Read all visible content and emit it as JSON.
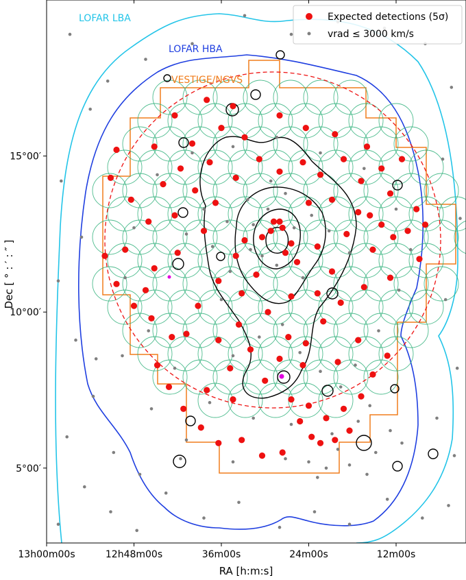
{
  "chart_data": {
    "type": "scatter",
    "xlabel": "RA [h:m:s]",
    "ylabel": "Dec [ ° : ′ : ″ ]",
    "x_units": "degrees of RA (decreasing to the right)",
    "xlim": [
      195.0,
      180.6
    ],
    "ylim": [
      2.6,
      20.0
    ],
    "x_ticks": [
      {
        "value": 195.0,
        "label": "13h00m00s"
      },
      {
        "value": 192.0,
        "label": "12h48m00s"
      },
      {
        "value": 189.0,
        "label": "36m00s"
      },
      {
        "value": 186.0,
        "label": "24m00s"
      },
      {
        "value": 183.0,
        "label": "12m00s"
      }
    ],
    "y_ticks": [
      {
        "value": 5.0,
        "label": "5°00′"
      },
      {
        "value": 10.0,
        "label": "10°00′"
      },
      {
        "value": 15.0,
        "label": "15°00′"
      }
    ],
    "region_labels": [
      {
        "text": "LOFAR LBA",
        "color": "#22c4e8"
      },
      {
        "text": "LOFAR HBA",
        "color": "#1e3ee0"
      },
      {
        "text": "VESTIGE/NGVS",
        "color": "#f07d1c"
      }
    ],
    "legend": {
      "position": "top-right",
      "entries": [
        {
          "label": "Expected detections (5σ)",
          "color": "#ee1111",
          "marker": "large-dot"
        },
        {
          "label": "vrad ≤ 3000 km/s",
          "color": "#7f7f7f",
          "marker": "small-dot"
        }
      ]
    },
    "colors": {
      "lba": "#22c4e8",
      "hba": "#1e3ee0",
      "vestige": "#f07d1c",
      "red_circle": "#ee1111",
      "pointings": "#2fb07a",
      "contours": "#000000",
      "gray_points": "#7f7f7f",
      "red_points": "#ee1111",
      "magenta": "#e000e0"
    },
    "grid": false,
    "series": [
      {
        "name": "Expected detections (5σ)",
        "marker": "red dots",
        "points": [
          [
            187.6,
            12.4
          ],
          [
            187.3,
            12.6
          ],
          [
            187.0,
            12.9
          ],
          [
            187.2,
            12.9
          ],
          [
            186.9,
            12.7
          ],
          [
            186.6,
            12.2
          ],
          [
            186.8,
            11.9
          ],
          [
            188.2,
            12.3
          ],
          [
            188.5,
            11.8
          ],
          [
            187.8,
            11.2
          ],
          [
            186.4,
            11.6
          ],
          [
            185.7,
            12.1
          ],
          [
            185.2,
            11.3
          ],
          [
            184.7,
            12.5
          ],
          [
            184.3,
            13.2
          ],
          [
            183.9,
            13.1
          ],
          [
            183.5,
            12.8
          ],
          [
            183.8,
            12.0
          ],
          [
            183.1,
            12.4
          ],
          [
            182.6,
            12.6
          ],
          [
            182.3,
            13.3
          ],
          [
            182.0,
            12.8
          ],
          [
            182.2,
            11.7
          ],
          [
            183.2,
            11.1
          ],
          [
            184.1,
            10.8
          ],
          [
            184.9,
            10.3
          ],
          [
            185.5,
            9.7
          ],
          [
            186.1,
            9.0
          ],
          [
            186.7,
            9.2
          ],
          [
            187.0,
            8.5
          ],
          [
            188.0,
            8.8
          ],
          [
            188.7,
            8.2
          ],
          [
            187.5,
            7.8
          ],
          [
            186.6,
            7.2
          ],
          [
            186.0,
            7.0
          ],
          [
            185.4,
            6.6
          ],
          [
            184.8,
            6.9
          ],
          [
            184.2,
            7.3
          ],
          [
            183.8,
            8.0
          ],
          [
            183.3,
            8.6
          ],
          [
            185.9,
            6.0
          ],
          [
            185.6,
            5.8
          ],
          [
            185.1,
            5.9
          ],
          [
            184.6,
            6.2
          ],
          [
            186.3,
            6.5
          ],
          [
            186.9,
            5.5
          ],
          [
            187.6,
            5.4
          ],
          [
            188.3,
            5.9
          ],
          [
            189.1,
            5.8
          ],
          [
            189.7,
            6.3
          ],
          [
            190.3,
            6.9
          ],
          [
            189.5,
            7.5
          ],
          [
            188.6,
            7.2
          ],
          [
            190.8,
            7.6
          ],
          [
            191.2,
            8.3
          ],
          [
            190.7,
            9.2
          ],
          [
            191.4,
            9.8
          ],
          [
            192.0,
            10.2
          ],
          [
            192.6,
            10.9
          ],
          [
            191.3,
            11.4
          ],
          [
            190.5,
            11.9
          ],
          [
            189.6,
            12.6
          ],
          [
            189.2,
            13.5
          ],
          [
            189.9,
            13.9
          ],
          [
            190.6,
            13.1
          ],
          [
            191.5,
            12.9
          ],
          [
            192.3,
            12.0
          ],
          [
            193.0,
            11.8
          ],
          [
            192.1,
            13.6
          ],
          [
            191.0,
            14.1
          ],
          [
            190.4,
            14.6
          ],
          [
            189.4,
            14.8
          ],
          [
            188.5,
            14.3
          ],
          [
            187.7,
            14.9
          ],
          [
            187.0,
            14.5
          ],
          [
            186.2,
            14.8
          ],
          [
            185.6,
            14.4
          ],
          [
            184.8,
            14.9
          ],
          [
            184.2,
            14.2
          ],
          [
            183.5,
            14.6
          ],
          [
            182.8,
            14.9
          ],
          [
            183.2,
            13.8
          ],
          [
            185.2,
            13.6
          ],
          [
            186.0,
            13.5
          ],
          [
            188.2,
            15.6
          ],
          [
            189.0,
            15.9
          ],
          [
            190.0,
            15.4
          ],
          [
            191.3,
            15.3
          ],
          [
            192.6,
            15.2
          ],
          [
            187.0,
            16.3
          ],
          [
            186.1,
            15.9
          ],
          [
            185.1,
            15.7
          ],
          [
            184.0,
            15.3
          ],
          [
            188.6,
            16.6
          ],
          [
            189.5,
            16.8
          ],
          [
            190.6,
            16.3
          ],
          [
            186.6,
            10.5
          ],
          [
            187.4,
            10.0
          ],
          [
            188.3,
            10.6
          ],
          [
            189.1,
            11.0
          ],
          [
            189.8,
            10.2
          ],
          [
            190.2,
            9.3
          ],
          [
            189.1,
            9.1
          ],
          [
            188.4,
            9.6
          ],
          [
            185.7,
            10.6
          ],
          [
            185.0,
            8.4
          ],
          [
            184.3,
            9.1
          ],
          [
            186.2,
            8.3
          ],
          [
            191.6,
            10.7
          ],
          [
            192.8,
            14.3
          ]
        ]
      },
      {
        "name": "vrad ≤ 3000 km/s",
        "marker": "gray dots",
        "points": [
          [
            194.2,
            18.9
          ],
          [
            193.5,
            16.5
          ],
          [
            194.5,
            14.2
          ],
          [
            193.8,
            12.4
          ],
          [
            194.6,
            11.0
          ],
          [
            194.0,
            9.1
          ],
          [
            193.4,
            7.3
          ],
          [
            194.3,
            6.0
          ],
          [
            193.7,
            4.4
          ],
          [
            194.6,
            3.2
          ],
          [
            192.8,
            3.6
          ],
          [
            191.9,
            3.0
          ],
          [
            190.9,
            4.2
          ],
          [
            189.6,
            3.4
          ],
          [
            188.4,
            3.9
          ],
          [
            187.0,
            3.1
          ],
          [
            185.8,
            3.6
          ],
          [
            184.6,
            3.2
          ],
          [
            183.3,
            4.0
          ],
          [
            182.1,
            3.4
          ],
          [
            181.2,
            3.8
          ],
          [
            181.0,
            5.4
          ],
          [
            181.6,
            6.6
          ],
          [
            180.9,
            8.2
          ],
          [
            181.3,
            10.4
          ],
          [
            180.8,
            13.0
          ],
          [
            181.4,
            14.9
          ],
          [
            181.1,
            17.2
          ],
          [
            182.0,
            18.6
          ],
          [
            183.4,
            19.1
          ],
          [
            185.0,
            19.3
          ],
          [
            186.6,
            18.9
          ],
          [
            188.2,
            19.5
          ],
          [
            190.0,
            18.6
          ],
          [
            191.6,
            18.1
          ],
          [
            192.9,
            17.4
          ],
          [
            193.3,
            8.5
          ],
          [
            192.7,
            5.5
          ],
          [
            191.8,
            4.8
          ],
          [
            190.4,
            5.3
          ],
          [
            186.0,
            5.2
          ],
          [
            185.4,
            5.0
          ],
          [
            185.0,
            5.6
          ],
          [
            184.6,
            5.1
          ],
          [
            184.0,
            4.8
          ],
          [
            183.7,
            5.5
          ],
          [
            183.2,
            6.2
          ],
          [
            182.8,
            5.8
          ],
          [
            184.3,
            6.5
          ],
          [
            185.7,
            4.7
          ],
          [
            188.0,
            12.0
          ],
          [
            187.9,
            12.8
          ],
          [
            187.4,
            13.3
          ],
          [
            187.1,
            11.5
          ],
          [
            186.5,
            12.7
          ],
          [
            188.8,
            12.9
          ],
          [
            188.7,
            11.3
          ],
          [
            187.6,
            11.8
          ],
          [
            186.2,
            11.1
          ],
          [
            189.3,
            12.1
          ],
          [
            186.8,
            13.8
          ],
          [
            188.1,
            13.6
          ],
          [
            187.3,
            14.2
          ],
          [
            189.6,
            13.3
          ],
          [
            185.3,
            12.6
          ],
          [
            185.9,
            13.1
          ],
          [
            190.2,
            12.5
          ],
          [
            184.6,
            11.9
          ],
          [
            189.0,
            10.4
          ],
          [
            186.9,
            9.6
          ],
          [
            187.7,
            9.2
          ],
          [
            188.6,
            8.6
          ],
          [
            186.3,
            8.7
          ],
          [
            185.6,
            8.1
          ],
          [
            184.9,
            7.6
          ],
          [
            186.6,
            6.4
          ],
          [
            187.9,
            6.6
          ],
          [
            189.4,
            7.1
          ],
          [
            190.6,
            8.2
          ],
          [
            191.5,
            9.4
          ],
          [
            192.3,
            11.1
          ],
          [
            192.0,
            12.7
          ],
          [
            191.2,
            14.4
          ],
          [
            190.0,
            15.1
          ],
          [
            188.6,
            15.3
          ],
          [
            187.1,
            15.6
          ],
          [
            185.6,
            15.1
          ],
          [
            184.1,
            14.6
          ],
          [
            183.0,
            13.3
          ],
          [
            182.5,
            12.0
          ],
          [
            182.9,
            10.7
          ],
          [
            183.6,
            9.4
          ],
          [
            184.4,
            8.3
          ],
          [
            183.9,
            7.0
          ],
          [
            185.2,
            6.1
          ],
          [
            186.8,
            5.3
          ],
          [
            188.6,
            5.2
          ],
          [
            190.2,
            5.9
          ],
          [
            191.4,
            6.9
          ],
          [
            192.4,
            8.6
          ]
        ]
      }
    ],
    "contours_note": "black nested iso-density contours centered near RA 187.7, Dec 12.4"
  }
}
